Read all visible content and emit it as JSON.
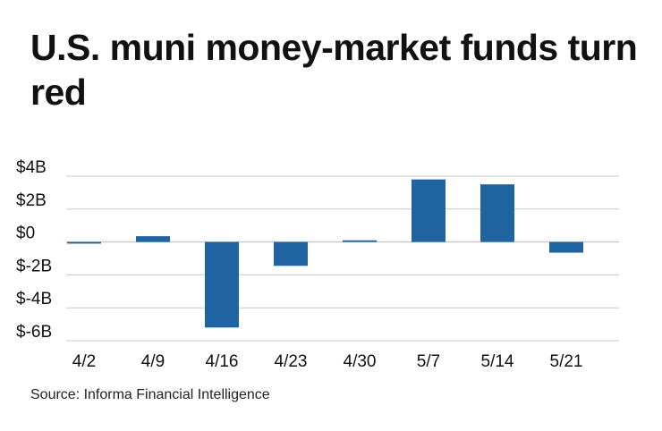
{
  "chart_data": {
    "type": "bar",
    "title": "U.S. muni money-market funds turn red",
    "xlabel": "",
    "ylabel": "",
    "categories": [
      "4/2",
      "4/9",
      "4/16",
      "4/23",
      "4/30",
      "5/7",
      "5/14",
      "5/21"
    ],
    "values": [
      -0.1,
      0.35,
      -5.2,
      -1.45,
      0.1,
      3.8,
      3.5,
      -0.65
    ],
    "value_unit": "billions of dollars",
    "ylim": [
      -6,
      4
    ],
    "yticks": [
      4,
      2,
      0,
      -2,
      -4,
      -6
    ],
    "ytick_labels": [
      "$4B",
      "$2B",
      "$0",
      "$-2B",
      "$-4B",
      "$-6B"
    ],
    "grid": true,
    "legend": "none",
    "bar_color": "#1f64a0",
    "grid_color": "#c8c8c8",
    "source": "Source: Informa Financial Intelligence"
  }
}
